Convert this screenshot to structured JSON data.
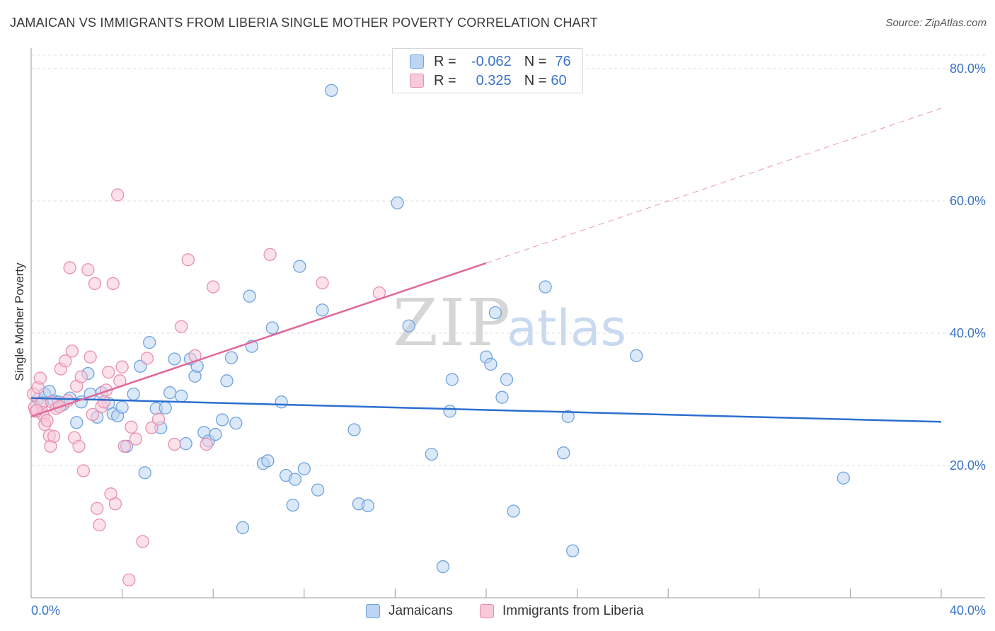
{
  "header": {
    "title": "JAMAICAN VS IMMIGRANTS FROM LIBERIA SINGLE MOTHER POVERTY CORRELATION CHART",
    "source": "Source: ZipAtlas.com"
  },
  "watermark": {
    "zip": "ZIP",
    "atlas": "atlas"
  },
  "legend": {
    "rows": [
      {
        "r_label": "R =",
        "r_value": "-0.062",
        "n_label": "N =",
        "n_value": "76",
        "color": "#6fa3e0",
        "fill": "#bcd5f3"
      },
      {
        "r_label": "R =",
        "r_value": "0.325",
        "n_label": "N =",
        "n_value": "60",
        "color": "#e890ae",
        "fill": "#f8c9d8"
      }
    ]
  },
  "bottom_legend": {
    "items": [
      {
        "label": "Jamaicans",
        "color": "#6fa3e0",
        "fill": "#bcd5f3"
      },
      {
        "label": "Immigrants from Liberia",
        "color": "#e890ae",
        "fill": "#f8c9d8"
      }
    ]
  },
  "colors": {
    "jamaican_line": "#2b6fcf",
    "liberia_line": "#e0689a",
    "axis_text": "#3a74c9",
    "grid": "#dcdcdc"
  },
  "chart_data": {
    "type": "scatter",
    "title": "JAMAICAN VS IMMIGRANTS FROM LIBERIA SINGLE MOTHER POVERTY CORRELATION CHART",
    "xlabel": "",
    "ylabel": "Single Mother Poverty",
    "xlim": [
      0,
      40
    ],
    "ylim": [
      0,
      80
    ],
    "x_tick_labels": [
      "0.0%",
      "40.0%"
    ],
    "y_ticks": [
      20,
      40,
      60,
      80
    ],
    "y_tick_labels": [
      "20.0%",
      "40.0%",
      "60.0%",
      "80.0%"
    ],
    "grid": true,
    "legend_position": "top-center",
    "series": [
      {
        "name": "Jamaicans",
        "color": "#6fa3e0",
        "fill": "#bcd5f3",
        "trend": {
          "x": [
            0,
            40
          ],
          "y": [
            30.2,
            26.6
          ],
          "style": "solid"
        },
        "points": [
          [
            0.3,
            30.0
          ],
          [
            0.5,
            29.5
          ],
          [
            0.6,
            30.8
          ],
          [
            0.8,
            31.2
          ],
          [
            1.0,
            29.8
          ],
          [
            1.2,
            29.6
          ],
          [
            1.4,
            29.2
          ],
          [
            1.7,
            30.2
          ],
          [
            2.0,
            26.5
          ],
          [
            2.2,
            29.6
          ],
          [
            2.5,
            33.9
          ],
          [
            2.6,
            30.8
          ],
          [
            2.9,
            27.3
          ],
          [
            3.1,
            31.0
          ],
          [
            3.4,
            29.4
          ],
          [
            3.6,
            27.8
          ],
          [
            3.8,
            27.5
          ],
          [
            4.0,
            28.8
          ],
          [
            4.2,
            22.9
          ],
          [
            4.5,
            30.8
          ],
          [
            4.8,
            35.0
          ],
          [
            5.0,
            18.9
          ],
          [
            5.2,
            38.6
          ],
          [
            5.5,
            28.6
          ],
          [
            5.7,
            25.7
          ],
          [
            5.9,
            28.7
          ],
          [
            6.1,
            31.0
          ],
          [
            6.3,
            36.1
          ],
          [
            6.6,
            30.5
          ],
          [
            6.8,
            23.3
          ],
          [
            7.0,
            36.1
          ],
          [
            7.2,
            33.5
          ],
          [
            7.3,
            35.0
          ],
          [
            7.6,
            25.0
          ],
          [
            7.8,
            23.7
          ],
          [
            8.1,
            24.7
          ],
          [
            8.4,
            26.9
          ],
          [
            8.6,
            32.8
          ],
          [
            8.8,
            36.3
          ],
          [
            9.0,
            26.4
          ],
          [
            9.3,
            10.6
          ],
          [
            9.6,
            45.6
          ],
          [
            9.7,
            38.0
          ],
          [
            10.2,
            20.3
          ],
          [
            10.4,
            20.7
          ],
          [
            10.6,
            40.8
          ],
          [
            11.0,
            29.6
          ],
          [
            11.2,
            18.5
          ],
          [
            11.5,
            14.0
          ],
          [
            11.6,
            17.9
          ],
          [
            11.8,
            50.1
          ],
          [
            12.0,
            19.5
          ],
          [
            12.6,
            16.3
          ],
          [
            12.8,
            43.5
          ],
          [
            13.2,
            76.7
          ],
          [
            14.2,
            25.4
          ],
          [
            14.4,
            14.2
          ],
          [
            14.8,
            13.9
          ],
          [
            16.1,
            59.7
          ],
          [
            16.6,
            41.1
          ],
          [
            17.6,
            21.7
          ],
          [
            18.1,
            4.7
          ],
          [
            18.4,
            28.2
          ],
          [
            18.5,
            33.0
          ],
          [
            20.0,
            36.4
          ],
          [
            20.2,
            35.3
          ],
          [
            20.4,
            43.1
          ],
          [
            20.7,
            30.3
          ],
          [
            20.9,
            33.0
          ],
          [
            21.2,
            13.1
          ],
          [
            22.6,
            47.0
          ],
          [
            23.4,
            21.9
          ],
          [
            23.6,
            27.4
          ],
          [
            23.8,
            7.1
          ],
          [
            26.6,
            36.6
          ],
          [
            35.7,
            18.1
          ]
        ]
      },
      {
        "name": "Immigrants from Liberia",
        "color": "#e890ae",
        "fill": "#f8c9d8",
        "trend": {
          "x": [
            0,
            20
          ],
          "y": [
            27.4,
            50.6
          ],
          "style": "solid",
          "extended_x": [
            20,
            40
          ],
          "extended_y": [
            50.6,
            74.0
          ],
          "extended_style": "dashed"
        },
        "points": [
          [
            0.1,
            30.8
          ],
          [
            0.15,
            28.8
          ],
          [
            0.2,
            28.2
          ],
          [
            0.3,
            31.8
          ],
          [
            0.4,
            33.2
          ],
          [
            0.45,
            29.4
          ],
          [
            0.5,
            28.0
          ],
          [
            0.55,
            27.5
          ],
          [
            0.6,
            26.2
          ],
          [
            0.7,
            26.8
          ],
          [
            0.8,
            24.5
          ],
          [
            0.85,
            22.9
          ],
          [
            0.9,
            29.6
          ],
          [
            1.0,
            24.4
          ],
          [
            1.1,
            28.6
          ],
          [
            1.3,
            34.6
          ],
          [
            1.5,
            35.8
          ],
          [
            1.6,
            29.8
          ],
          [
            1.7,
            49.9
          ],
          [
            1.8,
            37.3
          ],
          [
            1.9,
            24.2
          ],
          [
            2.0,
            32.0
          ],
          [
            2.1,
            22.9
          ],
          [
            2.2,
            33.4
          ],
          [
            2.3,
            19.2
          ],
          [
            2.5,
            49.6
          ],
          [
            2.6,
            36.4
          ],
          [
            2.7,
            27.7
          ],
          [
            2.8,
            47.5
          ],
          [
            2.9,
            13.5
          ],
          [
            3.0,
            11.0
          ],
          [
            3.1,
            28.9
          ],
          [
            3.2,
            29.6
          ],
          [
            3.3,
            31.4
          ],
          [
            3.4,
            34.1
          ],
          [
            3.5,
            15.7
          ],
          [
            3.6,
            47.5
          ],
          [
            3.7,
            14.2
          ],
          [
            3.8,
            60.9
          ],
          [
            3.9,
            32.8
          ],
          [
            4.0,
            34.9
          ],
          [
            4.1,
            22.9
          ],
          [
            4.3,
            2.7
          ],
          [
            4.4,
            25.8
          ],
          [
            4.6,
            24.0
          ],
          [
            4.9,
            8.5
          ],
          [
            5.1,
            36.2
          ],
          [
            5.3,
            25.7
          ],
          [
            5.6,
            27.0
          ],
          [
            6.3,
            23.2
          ],
          [
            6.6,
            41.0
          ],
          [
            6.9,
            51.1
          ],
          [
            7.2,
            36.6
          ],
          [
            7.7,
            23.2
          ],
          [
            8.0,
            47.0
          ],
          [
            10.5,
            51.9
          ],
          [
            12.8,
            47.6
          ],
          [
            15.3,
            46.1
          ],
          [
            0.25,
            28.3
          ],
          [
            1.25,
            28.9
          ]
        ]
      }
    ]
  }
}
